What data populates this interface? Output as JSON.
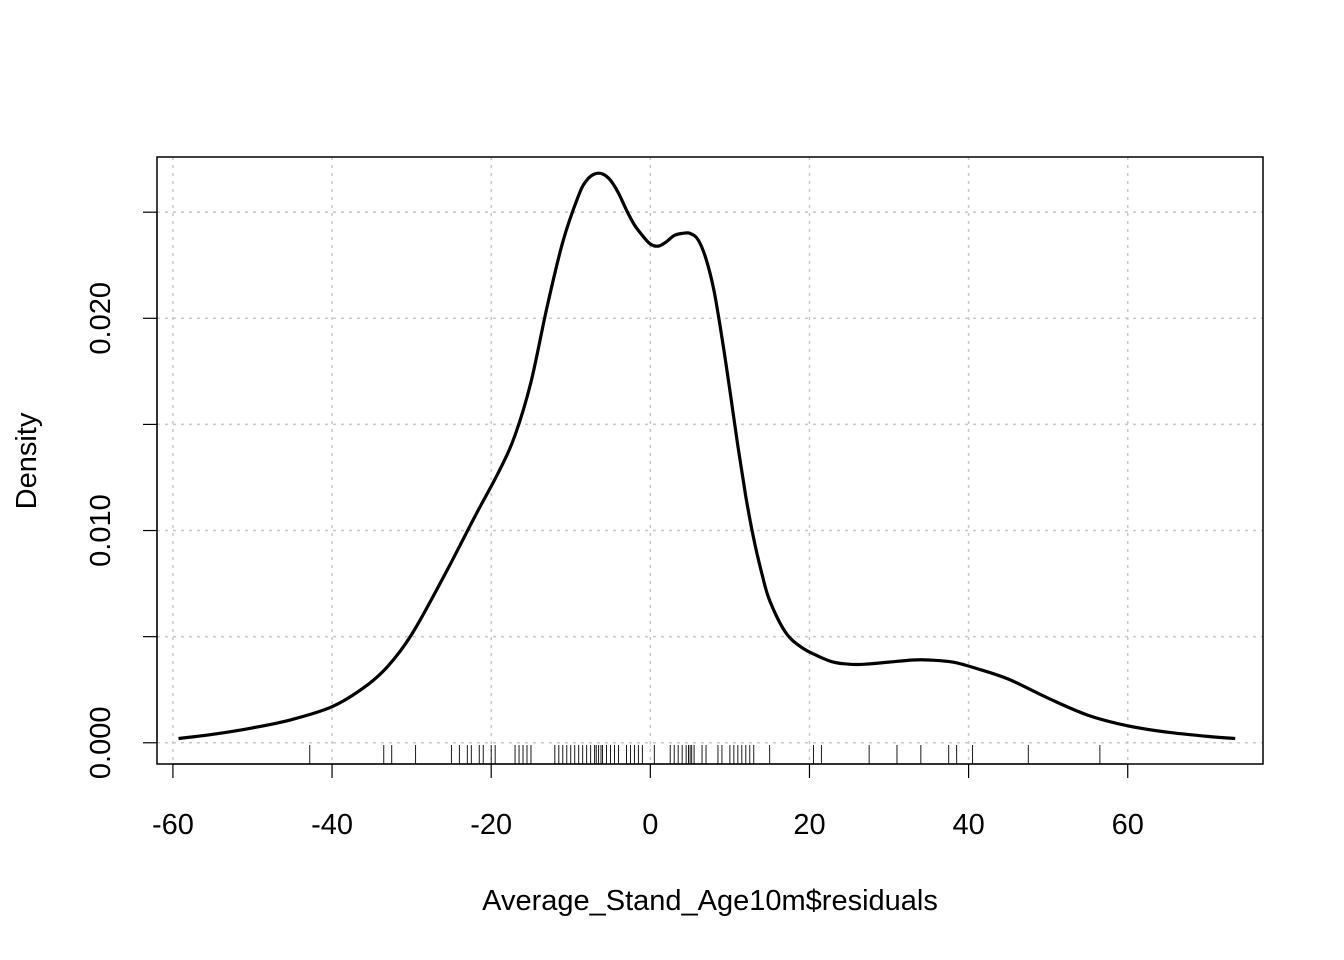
{
  "chart_data": {
    "type": "line",
    "title": "",
    "xlabel": "Average_Stand_Age10m$residuals",
    "ylabel": "Density",
    "xlim": [
      -62,
      77
    ],
    "ylim": [
      -0.001,
      0.0276
    ],
    "x_ticks": [
      -60,
      -40,
      -20,
      0,
      20,
      40,
      60
    ],
    "x_tick_labels": [
      "-60",
      "-40",
      "-20",
      "0",
      "20",
      "40",
      "60"
    ],
    "y_ticks": [
      0.0,
      0.005,
      0.01,
      0.015,
      0.02,
      0.025
    ],
    "y_tick_labels": [
      "0.000",
      "",
      "0.010",
      "",
      "0.020",
      ""
    ],
    "grid": true,
    "legend": "none",
    "series": [
      {
        "x": [
          -59.3,
          -55,
          -50,
          -45,
          -40,
          -36,
          -33,
          -30,
          -26,
          -22,
          -19,
          -17,
          -15,
          -13,
          -11,
          -9,
          -8,
          -7,
          -6,
          -5,
          -4,
          -3,
          -2,
          -1,
          0,
          1,
          2,
          3,
          4,
          5,
          6,
          7,
          8,
          9,
          10,
          11,
          12,
          13,
          14,
          15,
          17,
          19,
          21,
          23,
          25,
          27,
          30,
          33,
          35,
          38,
          41,
          45,
          50,
          55,
          60,
          65,
          70,
          73.5
        ],
        "y": [
          0.0002,
          0.0004,
          0.0007,
          0.0011,
          0.0017,
          0.0026,
          0.0036,
          0.0051,
          0.0078,
          0.0107,
          0.0128,
          0.0145,
          0.017,
          0.0205,
          0.0236,
          0.0258,
          0.0265,
          0.0268,
          0.0268,
          0.0265,
          0.0259,
          0.0251,
          0.0244,
          0.0239,
          0.0235,
          0.0234,
          0.0236,
          0.0239,
          0.024,
          0.024,
          0.0237,
          0.0228,
          0.0213,
          0.0191,
          0.0166,
          0.014,
          0.0116,
          0.0096,
          0.008,
          0.0067,
          0.0052,
          0.0045,
          0.0041,
          0.0038,
          0.0037,
          0.0037,
          0.0038,
          0.0039,
          0.0039,
          0.0038,
          0.0035,
          0.003,
          0.0021,
          0.0013,
          0.0008,
          0.0005,
          0.0003,
          0.0002
        ]
      }
    ],
    "rug": [
      -42.8,
      -33.5,
      -32.5,
      -29.5,
      -25,
      -24,
      -23,
      -22.5,
      -21.5,
      -21,
      -20,
      -19.5,
      -17,
      -16.5,
      -16,
      -15.5,
      -15,
      -12,
      -11.5,
      -11,
      -10.5,
      -10,
      -9.5,
      -9,
      -8.5,
      -8,
      -7.5,
      -7,
      -6.8,
      -6.5,
      -6.2,
      -6,
      -5.5,
      -5,
      -4.5,
      -4,
      -3,
      -2.5,
      -2,
      -1.5,
      -1,
      0.5,
      2.5,
      3,
      3.5,
      4,
      4.5,
      4.8,
      5,
      5.2,
      5.5,
      6.5,
      7,
      8.5,
      9,
      10,
      10.5,
      11,
      11.5,
      12,
      12.5,
      13,
      15,
      20.5,
      21.5,
      27.5,
      31,
      34,
      37.5,
      38.5,
      40.5,
      47.5,
      56.5
    ]
  }
}
